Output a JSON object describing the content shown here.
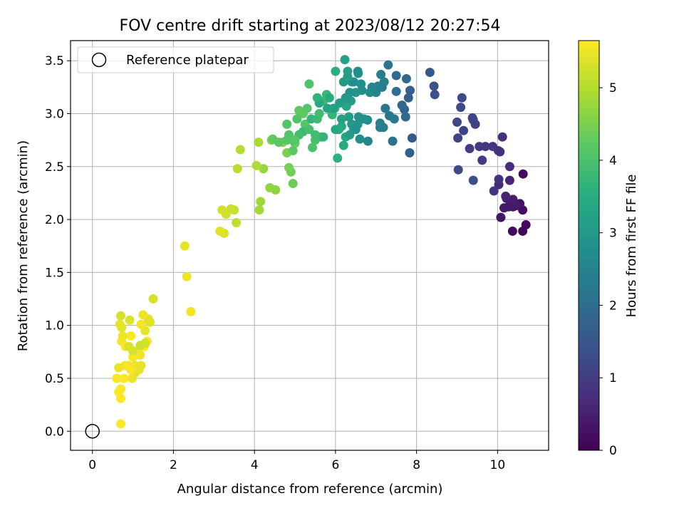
{
  "chart_data": {
    "type": "scatter",
    "title": "FOV centre drift starting at 2023/08/12 20:27:54",
    "xlabel": "Angular distance from reference (arcmin)",
    "ylabel": "Rotation from reference (arcmin)",
    "xlim": [
      -0.54,
      11.26
    ],
    "ylim": [
      -0.18,
      3.69
    ],
    "xticks": [
      0,
      2,
      4,
      6,
      8,
      10
    ],
    "yticks": [
      0.0,
      0.5,
      1.0,
      1.5,
      2.0,
      2.5,
      3.0,
      3.5
    ],
    "grid": true,
    "legend": {
      "position": "top-left",
      "entries": [
        "Reference platepar"
      ]
    },
    "reference": {
      "x": 0,
      "y": 0
    },
    "colorbar": {
      "label": "Hours from first FF file",
      "range": [
        0,
        5.65
      ],
      "ticks": [
        0,
        1,
        2,
        3,
        4,
        5
      ],
      "colormap": "viridis"
    },
    "points": [
      [
        10.62,
        1.89,
        0.05
      ],
      [
        10.7,
        1.95,
        0.1
      ],
      [
        10.37,
        1.89,
        0.15
      ],
      [
        10.62,
        2.09,
        0.2
      ],
      [
        10.55,
        2.15,
        0.25
      ],
      [
        10.38,
        2.12,
        0.3
      ],
      [
        10.27,
        2.12,
        0.35
      ],
      [
        10.45,
        2.13,
        0.4
      ],
      [
        10.38,
        2.19,
        0.45
      ],
      [
        10.22,
        2.2,
        0.5
      ],
      [
        10.63,
        2.43,
        0.15
      ],
      [
        10.08,
        2.02,
        0.3
      ],
      [
        10.16,
        2.11,
        0.4
      ],
      [
        10.2,
        2.22,
        0.55
      ],
      [
        10.3,
        2.37,
        0.6
      ],
      [
        10.03,
        2.33,
        0.65
      ],
      [
        10.3,
        2.5,
        0.7
      ],
      [
        10.12,
        2.78,
        0.75
      ],
      [
        10.03,
        2.38,
        0.8
      ],
      [
        9.91,
        2.27,
        0.85
      ],
      [
        10.06,
        2.64,
        0.75
      ],
      [
        10.02,
        2.65,
        0.8
      ],
      [
        9.88,
        2.69,
        0.85
      ],
      [
        9.7,
        2.69,
        0.9
      ],
      [
        9.55,
        2.69,
        0.95
      ],
      [
        9.62,
        2.56,
        1.0
      ],
      [
        9.31,
        2.67,
        1.0
      ],
      [
        9.38,
        2.96,
        1.05
      ],
      [
        9.45,
        2.9,
        1.1
      ],
      [
        9.4,
        2.94,
        1.15
      ],
      [
        9.02,
        2.77,
        1.1
      ],
      [
        9.16,
        2.84,
        1.15
      ],
      [
        9.0,
        2.92,
        1.2
      ],
      [
        9.09,
        3.06,
        1.25
      ],
      [
        9.12,
        3.15,
        1.3
      ],
      [
        9.03,
        2.47,
        1.25
      ],
      [
        9.4,
        2.37,
        1.35
      ],
      [
        8.45,
        3.18,
        1.4
      ],
      [
        8.43,
        3.26,
        1.45
      ],
      [
        8.33,
        3.39,
        1.5
      ],
      [
        7.89,
        2.77,
        1.6
      ],
      [
        7.83,
        2.63,
        1.65
      ],
      [
        7.84,
        3.22,
        1.7
      ],
      [
        7.8,
        3.15,
        1.75
      ],
      [
        7.7,
        3.04,
        1.8
      ],
      [
        7.64,
        3.08,
        1.85
      ],
      [
        7.75,
        3.33,
        1.9
      ],
      [
        7.73,
        2.97,
        1.95
      ],
      [
        7.5,
        3.36,
        2.0
      ],
      [
        7.5,
        3.21,
        2.05
      ],
      [
        7.41,
        2.74,
        2.1
      ],
      [
        7.33,
        2.98,
        2.15
      ],
      [
        7.3,
        3.46,
        2.2
      ],
      [
        7.23,
        3.05,
        2.25
      ],
      [
        7.15,
        3.25,
        2.3
      ],
      [
        7.12,
        3.37,
        2.35
      ],
      [
        7.18,
        2.87,
        2.4
      ],
      [
        7.1,
        2.91,
        2.45
      ],
      [
        7.05,
        3.26,
        2.5
      ],
      [
        6.9,
        3.25,
        2.55
      ],
      [
        6.8,
        2.74,
        2.6
      ],
      [
        6.79,
        2.94,
        2.65
      ],
      [
        6.6,
        2.76,
        2.7
      ],
      [
        6.65,
        3.22,
        2.75
      ],
      [
        6.63,
        3.28,
        2.8
      ],
      [
        6.56,
        3.38,
        2.85
      ],
      [
        6.57,
        2.97,
        2.9
      ],
      [
        6.5,
        3.2,
        2.95
      ],
      [
        6.45,
        2.85,
        3.0
      ],
      [
        6.4,
        3.3,
        3.05
      ],
      [
        6.38,
        3.12,
        3.1
      ],
      [
        6.33,
        2.97,
        3.15
      ],
      [
        6.3,
        3.4,
        3.2
      ],
      [
        6.23,
        3.51,
        3.25
      ],
      [
        6.27,
        3.07,
        3.3
      ],
      [
        6.25,
        2.78,
        3.35
      ],
      [
        6.2,
        2.7,
        3.4
      ],
      [
        6.15,
        2.88,
        3.45
      ],
      [
        6.08,
        2.85,
        3.5
      ],
      [
        6.0,
        3.4,
        3.55
      ],
      [
        6.05,
        2.58,
        3.6
      ],
      [
        5.98,
        3.05,
        3.65
      ],
      [
        5.92,
        2.99,
        3.7
      ],
      [
        5.78,
        3.18,
        3.75
      ],
      [
        5.7,
        3.12,
        3.8
      ],
      [
        5.65,
        2.78,
        3.85
      ],
      [
        5.6,
        3.0,
        3.9
      ],
      [
        5.5,
        2.75,
        3.95
      ],
      [
        5.43,
        2.68,
        4.0
      ],
      [
        5.35,
        3.28,
        4.05
      ],
      [
        5.3,
        3.05,
        4.1
      ],
      [
        5.25,
        2.9,
        4.15
      ],
      [
        5.2,
        3.0,
        4.2
      ],
      [
        5.1,
        3.03,
        4.25
      ],
      [
        5.0,
        2.72,
        4.3
      ],
      [
        4.95,
        2.34,
        4.35
      ],
      [
        4.9,
        2.45,
        4.4
      ],
      [
        4.85,
        2.49,
        4.45
      ],
      [
        4.8,
        2.63,
        4.5
      ],
      [
        4.7,
        2.73,
        4.55
      ],
      [
        4.42,
        2.75,
        4.6
      ],
      [
        4.52,
        2.28,
        4.65
      ],
      [
        4.38,
        2.3,
        4.7
      ],
      [
        4.22,
        2.48,
        4.75
      ],
      [
        4.15,
        2.17,
        4.8
      ],
      [
        4.12,
        2.09,
        4.85
      ],
      [
        4.1,
        2.73,
        4.9
      ],
      [
        4.05,
        2.51,
        4.95
      ],
      [
        3.65,
        2.66,
        5.0
      ],
      [
        3.58,
        2.48,
        5.05
      ],
      [
        3.55,
        1.97,
        5.1
      ],
      [
        3.5,
        2.09,
        5.15
      ],
      [
        3.42,
        2.1,
        5.2
      ],
      [
        3.3,
        2.05,
        5.25
      ],
      [
        3.2,
        2.09,
        5.3
      ],
      [
        3.25,
        1.87,
        5.35
      ],
      [
        3.15,
        1.89,
        5.4
      ],
      [
        2.28,
        1.75,
        5.45
      ],
      [
        2.33,
        1.46,
        5.5
      ],
      [
        2.43,
        1.13,
        5.55
      ],
      [
        1.5,
        1.25,
        5.3
      ],
      [
        1.42,
        1.03,
        5.35
      ],
      [
        1.38,
        1.06,
        5.4
      ],
      [
        1.3,
        0.95,
        5.45
      ],
      [
        1.25,
        1.1,
        5.5
      ],
      [
        1.2,
        1.01,
        5.55
      ],
      [
        1.35,
        0.85,
        5.6
      ],
      [
        1.28,
        0.8,
        5.65
      ],
      [
        1.18,
        0.72,
        5.5
      ],
      [
        1.1,
        0.75,
        5.55
      ],
      [
        1.0,
        0.7,
        5.6
      ],
      [
        0.95,
        0.9,
        5.65
      ],
      [
        1.05,
        0.55,
        5.4
      ],
      [
        1.15,
        0.58,
        5.45
      ],
      [
        0.98,
        0.5,
        5.5
      ],
      [
        0.88,
        0.62,
        5.55
      ],
      [
        0.8,
        0.62,
        5.6
      ],
      [
        0.78,
        0.5,
        5.65
      ],
      [
        0.65,
        0.6,
        5.5
      ],
      [
        0.6,
        0.5,
        5.6
      ],
      [
        0.7,
        1.09,
        5.3
      ],
      [
        0.92,
        1.05,
        5.35
      ],
      [
        0.72,
        0.98,
        5.4
      ],
      [
        0.68,
        1.01,
        5.45
      ],
      [
        0.75,
        0.9,
        5.5
      ],
      [
        0.72,
        0.85,
        5.55
      ],
      [
        0.82,
        0.8,
        5.6
      ],
      [
        0.7,
        0.4,
        5.62
      ],
      [
        0.65,
        0.37,
        5.64
      ],
      [
        0.7,
        0.31,
        5.65
      ],
      [
        0.7,
        0.07,
        5.65
      ],
      [
        1.18,
        0.81,
        5.2
      ],
      [
        1.3,
        0.83,
        5.25
      ],
      [
        1.0,
        0.76,
        5.3
      ],
      [
        0.9,
        0.8,
        5.35
      ],
      [
        1.2,
        0.62,
        5.45
      ],
      [
        1.05,
        0.62,
        5.5
      ],
      [
        0.95,
        0.58,
        5.6
      ],
      [
        6.45,
        3.3,
        2.8
      ],
      [
        6.35,
        3.2,
        2.9
      ],
      [
        6.25,
        3.15,
        3.0
      ],
      [
        6.1,
        3.1,
        3.1
      ],
      [
        5.95,
        3.05,
        3.2
      ],
      [
        5.8,
        3.05,
        3.3
      ],
      [
        5.6,
        3.1,
        3.4
      ],
      [
        5.85,
        3.15,
        3.5
      ],
      [
        5.55,
        3.15,
        3.6
      ],
      [
        5.4,
        2.95,
        3.7
      ],
      [
        5.2,
        2.83,
        3.8
      ],
      [
        5.1,
        2.8,
        3.9
      ],
      [
        4.95,
        2.75,
        4.0
      ],
      [
        4.85,
        2.8,
        4.05
      ],
      [
        4.8,
        2.75,
        4.1
      ],
      [
        4.6,
        2.73,
        4.2
      ],
      [
        4.45,
        2.76,
        4.25
      ],
      [
        4.8,
        2.9,
        4.1
      ],
      [
        5.05,
        2.95,
        4.05
      ],
      [
        5.5,
        2.8,
        3.9
      ],
      [
        6.0,
        2.85,
        3.3
      ],
      [
        6.15,
        2.95,
        3.2
      ],
      [
        6.35,
        2.8,
        3.1
      ],
      [
        6.55,
        2.9,
        2.95
      ],
      [
        6.7,
        2.95,
        2.85
      ],
      [
        6.85,
        3.2,
        2.7
      ],
      [
        7.0,
        3.2,
        2.6
      ],
      [
        7.2,
        3.3,
        2.45
      ],
      [
        7.45,
        2.95,
        2.3
      ],
      [
        6.55,
        3.4,
        2.75
      ],
      [
        6.2,
        3.3,
        3.05
      ],
      [
        6.3,
        3.35,
        3.15
      ],
      [
        5.7,
        2.78,
        3.7
      ],
      [
        5.0,
        2.75,
        4.15
      ],
      [
        4.95,
        2.65,
        4.2
      ],
      [
        5.35,
        2.85,
        3.95
      ],
      [
        5.55,
        2.95,
        3.85
      ],
      [
        6.4,
        2.9,
        3.0
      ],
      [
        6.5,
        2.85,
        2.9
      ],
      [
        7.1,
        2.87,
        2.5
      ]
    ]
  }
}
